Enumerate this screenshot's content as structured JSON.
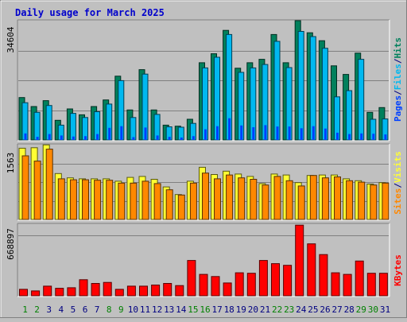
{
  "title": "Daily usage for March 2025",
  "colors": {
    "background": "#c0c0c0",
    "title": "#0000cc",
    "hits": "#00805c",
    "files": "#00b8f0",
    "pages": "#0040ff",
    "visits": "#ffff33",
    "sites": "#ff8800",
    "kbytes": "#ff0000",
    "weekend_label": "#008000",
    "weekday_label": "#000080"
  },
  "chart_data": [
    {
      "type": "bar",
      "name": "hits-files-pages",
      "y_label_max": "34604",
      "legend": [
        {
          "text": "Pages",
          "color": "#0040ff"
        },
        {
          "text": "/",
          "color": "#000080"
        },
        {
          "text": "Files",
          "color": "#00b8f0"
        },
        {
          "text": "/",
          "color": "#000080"
        },
        {
          "text": "Hits",
          "color": "#00805c"
        }
      ],
      "ylim": [
        0,
        34604
      ],
      "gridlines": [
        8651,
        17302,
        25953
      ],
      "categories": [
        "1",
        "2",
        "3",
        "4",
        "5",
        "6",
        "7",
        "8",
        "9",
        "10",
        "11",
        "12",
        "13",
        "14",
        "15",
        "16",
        "17",
        "18",
        "19",
        "20",
        "21",
        "22",
        "23",
        "24",
        "25",
        "26",
        "27",
        "28",
        "29",
        "30",
        "31"
      ],
      "series": [
        {
          "key": "hits",
          "values": [
            12300,
            9700,
            11400,
            5700,
            9000,
            7300,
            9700,
            11600,
            18500,
            8700,
            20400,
            8700,
            4300,
            4000,
            6000,
            22400,
            25000,
            31800,
            20800,
            22400,
            23400,
            30600,
            22400,
            34600,
            31100,
            28800,
            21500,
            19000,
            25200,
            8000,
            9400
          ]
        },
        {
          "key": "files",
          "values": [
            10800,
            8000,
            10000,
            4300,
            7700,
            6500,
            8200,
            10400,
            17200,
            6500,
            19100,
            7400,
            3800,
            3700,
            4800,
            20900,
            24000,
            30600,
            19600,
            20900,
            21900,
            28600,
            21000,
            31500,
            30000,
            26600,
            12500,
            14300,
            23400,
            6000,
            6100
          ]
        },
        {
          "key": "pages",
          "values": [
            1900,
            900,
            1700,
            1300,
            1000,
            1100,
            1700,
            3500,
            4000,
            800,
            3600,
            1300,
            900,
            700,
            1100,
            3100,
            4000,
            6300,
            4200,
            3700,
            4300,
            3900,
            3900,
            3400,
            4000,
            3300,
            2100,
            1700,
            1900,
            1800,
            1600
          ]
        }
      ]
    },
    {
      "type": "bar",
      "name": "visits-sites",
      "y_label_max": "1563",
      "legend": [
        {
          "text": "Sites",
          "color": "#ff8800"
        },
        {
          "text": "/",
          "color": "#000080"
        },
        {
          "text": "Visits",
          "color": "#ffff33"
        }
      ],
      "ylim": [
        0,
        1563
      ],
      "gridlines": [
        390,
        781,
        1172
      ],
      "categories": [
        "1",
        "2",
        "3",
        "4",
        "5",
        "6",
        "7",
        "8",
        "9",
        "10",
        "11",
        "12",
        "13",
        "14",
        "15",
        "16",
        "17",
        "18",
        "19",
        "20",
        "21",
        "22",
        "23",
        "24",
        "25",
        "26",
        "27",
        "28",
        "29",
        "30",
        "31"
      ],
      "series": [
        {
          "key": "visits",
          "values": [
            1490,
            1500,
            1560,
            960,
            870,
            850,
            850,
            850,
            800,
            880,
            900,
            840,
            680,
            520,
            800,
            1090,
            940,
            1010,
            950,
            900,
            750,
            950,
            930,
            770,
            920,
            930,
            930,
            850,
            810,
            740,
            770
          ]
        },
        {
          "key": "sites",
          "values": [
            1330,
            1220,
            1470,
            850,
            830,
            830,
            820,
            820,
            760,
            760,
            800,
            750,
            620,
            510,
            760,
            970,
            850,
            930,
            870,
            840,
            720,
            900,
            810,
            700,
            920,
            870,
            890,
            810,
            780,
            720,
            760
          ]
        }
      ]
    },
    {
      "type": "bar",
      "name": "kbytes",
      "y_label_max": "668897",
      "legend": [
        {
          "text": "KBytes",
          "color": "#ff0000"
        }
      ],
      "ylim": [
        0,
        668897
      ],
      "gridlines": [
        565000
      ],
      "categories": [
        "1",
        "2",
        "3",
        "4",
        "5",
        "6",
        "7",
        "8",
        "9",
        "10",
        "11",
        "12",
        "13",
        "14",
        "15",
        "16",
        "17",
        "18",
        "19",
        "20",
        "21",
        "22",
        "23",
        "24",
        "25",
        "26",
        "27",
        "28",
        "29",
        "30",
        "31"
      ],
      "series": [
        {
          "key": "kbytes",
          "values": [
            60000,
            45000,
            90000,
            70000,
            75000,
            150000,
            115000,
            125000,
            60000,
            90000,
            90000,
            100000,
            115000,
            95000,
            330000,
            200000,
            180000,
            120000,
            215000,
            210000,
            330000,
            300000,
            285000,
            660000,
            485000,
            385000,
            215000,
            200000,
            325000,
            210000,
            210000
          ]
        }
      ]
    }
  ],
  "x_labels": [
    {
      "text": "1",
      "weekend": true
    },
    {
      "text": "2",
      "weekend": true
    },
    {
      "text": "3",
      "weekend": false
    },
    {
      "text": "4",
      "weekend": false
    },
    {
      "text": "5",
      "weekend": false
    },
    {
      "text": "6",
      "weekend": false
    },
    {
      "text": "7",
      "weekend": false
    },
    {
      "text": "8",
      "weekend": true
    },
    {
      "text": "9",
      "weekend": true
    },
    {
      "text": "10",
      "weekend": false
    },
    {
      "text": "11",
      "weekend": false
    },
    {
      "text": "12",
      "weekend": false
    },
    {
      "text": "13",
      "weekend": false
    },
    {
      "text": "14",
      "weekend": false
    },
    {
      "text": "15",
      "weekend": true
    },
    {
      "text": "16",
      "weekend": true
    },
    {
      "text": "17",
      "weekend": false
    },
    {
      "text": "18",
      "weekend": false
    },
    {
      "text": "19",
      "weekend": false
    },
    {
      "text": "20",
      "weekend": false
    },
    {
      "text": "21",
      "weekend": false
    },
    {
      "text": "22",
      "weekend": true
    },
    {
      "text": "23",
      "weekend": true
    },
    {
      "text": "24",
      "weekend": false
    },
    {
      "text": "25",
      "weekend": false
    },
    {
      "text": "26",
      "weekend": false
    },
    {
      "text": "27",
      "weekend": false
    },
    {
      "text": "28",
      "weekend": false
    },
    {
      "text": "29",
      "weekend": true
    },
    {
      "text": "30",
      "weekend": true
    },
    {
      "text": "31",
      "weekend": false
    }
  ]
}
